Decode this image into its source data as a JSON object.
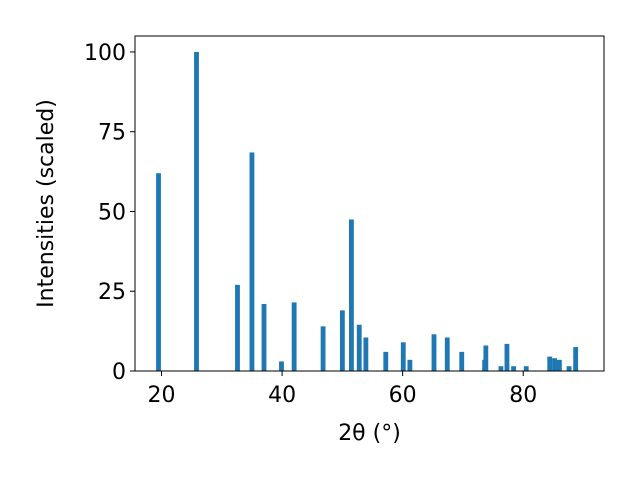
{
  "chart_data": {
    "type": "bar",
    "xlabel": "2θ (°)",
    "ylabel": "Intensities (scaled)",
    "xlim": [
      15.6,
      93.4
    ],
    "ylim": [
      0,
      105
    ],
    "xticks": [
      20,
      40,
      60,
      80
    ],
    "yticks": [
      0,
      25,
      50,
      75,
      100
    ],
    "grid": false,
    "bar_color": "#1f77b4",
    "bar_width": 0.8,
    "x": [
      19.5,
      25.8,
      32.6,
      35.0,
      37.0,
      39.9,
      42.0,
      46.8,
      50.0,
      51.5,
      52.8,
      53.9,
      57.2,
      60.1,
      61.2,
      65.2,
      67.4,
      69.8,
      73.6,
      73.8,
      76.3,
      77.3,
      78.4,
      80.5,
      84.4,
      85.2,
      86.0,
      87.6,
      88.7
    ],
    "values": [
      62,
      100,
      27,
      68.5,
      21,
      3,
      21.5,
      14,
      19,
      47.5,
      14.5,
      10.5,
      6,
      9,
      3.5,
      11.5,
      10.5,
      6,
      3.5,
      8,
      1.5,
      8.5,
      1.5,
      1.5,
      4.5,
      4,
      3.5,
      1.5,
      7.5
    ]
  }
}
